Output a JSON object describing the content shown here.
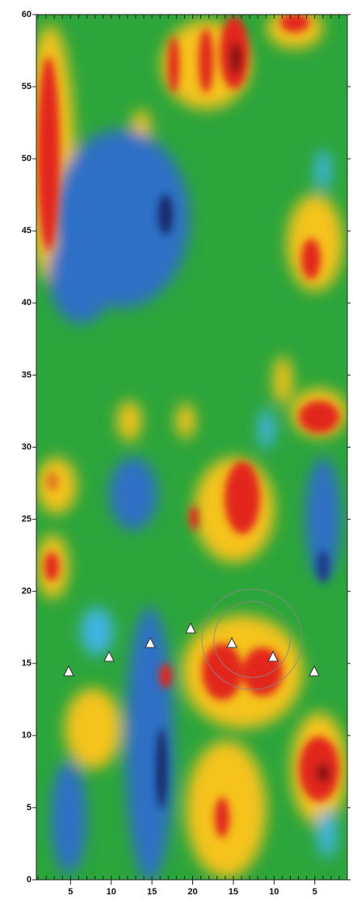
{
  "chart_data": {
    "type": "heatmap",
    "xlim": [
      0.8,
      39
    ],
    "xticks": [
      5,
      10,
      15,
      20,
      {
        "value": 25,
        "label": "15"
      },
      {
        "value": 30,
        "label": "10"
      },
      {
        "value": 35,
        "label": "5"
      }
    ],
    "ylim": [
      0,
      60
    ],
    "yticks": [
      0,
      5,
      10,
      15,
      20,
      25,
      30,
      35,
      40,
      45,
      50,
      55,
      60
    ]
  }
}
